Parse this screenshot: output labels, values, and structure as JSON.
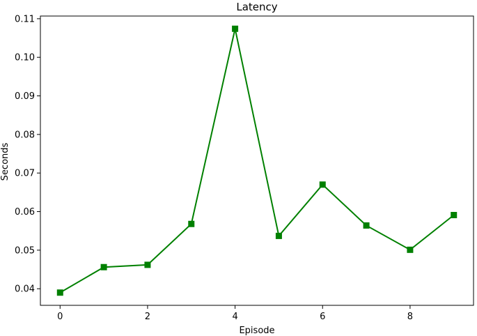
{
  "chart_data": {
    "type": "line",
    "title": "Latency",
    "xlabel": "Episode",
    "ylabel": "Seconds",
    "x": [
      0,
      1,
      2,
      3,
      4,
      5,
      6,
      7,
      8,
      9
    ],
    "series": [
      {
        "values": [
          0.039,
          0.0456,
          0.0462,
          0.0568,
          0.1074,
          0.0537,
          0.067,
          0.0564,
          0.0501,
          0.0591
        ],
        "color": "#008000",
        "marker": "square"
      }
    ],
    "xlim": [
      -0.45,
      9.45
    ],
    "ylim": [
      0.0357,
      0.1107
    ],
    "xticks": [
      0,
      2,
      4,
      6,
      8
    ],
    "yticks": [
      0.04,
      0.05,
      0.06,
      0.07,
      0.08,
      0.09,
      0.1,
      0.11
    ],
    "ytick_labels": [
      "0.04",
      "0.05",
      "0.06",
      "0.07",
      "0.08",
      "0.09",
      "0.10",
      "0.11"
    ],
    "grid": false,
    "legend": "none"
  }
}
